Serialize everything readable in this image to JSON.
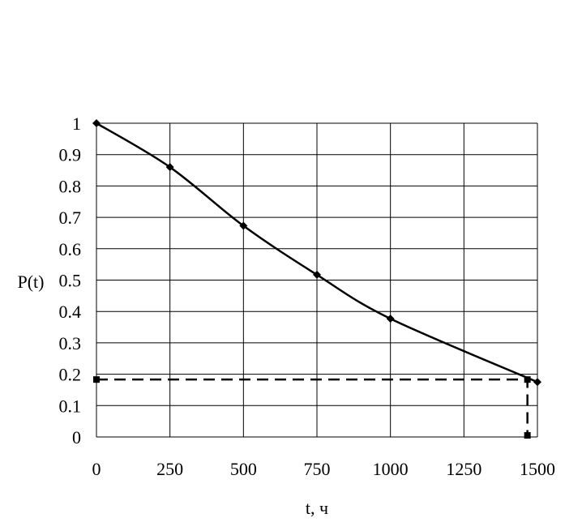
{
  "chart_data": {
    "type": "line",
    "xlabel": "t, ч",
    "ylabel": "P(t)",
    "xlim": [
      0,
      1500
    ],
    "ylim": [
      0,
      1
    ],
    "x_ticks": [
      "0",
      "250",
      "500",
      "750",
      "1000",
      "1250",
      "1500"
    ],
    "y_ticks": [
      "0",
      "0.1",
      "0.2",
      "0.3",
      "0.4",
      "0.5",
      "0.6",
      "0.7",
      "0.8",
      "0.9",
      "1"
    ],
    "grid": true,
    "colors": {
      "line": "#000000",
      "grid": "#000000",
      "background": "#ffffff"
    },
    "series": [
      {
        "style": "solid",
        "marker": "diamond",
        "points": [
          {
            "x": 0,
            "y": 1.0
          },
          {
            "x": 250,
            "y": 0.86
          },
          {
            "x": 500,
            "y": 0.673
          },
          {
            "x": 750,
            "y": 0.517
          },
          {
            "x": 1000,
            "y": 0.377
          },
          {
            "x": 1500,
            "y": 0.175
          }
        ]
      },
      {
        "style": "dashed",
        "marker": "square",
        "points": [
          {
            "x": 0,
            "y": 0.183
          },
          {
            "x": 1466,
            "y": 0.183
          },
          {
            "x": 1466,
            "y": 0.005
          }
        ]
      }
    ]
  }
}
